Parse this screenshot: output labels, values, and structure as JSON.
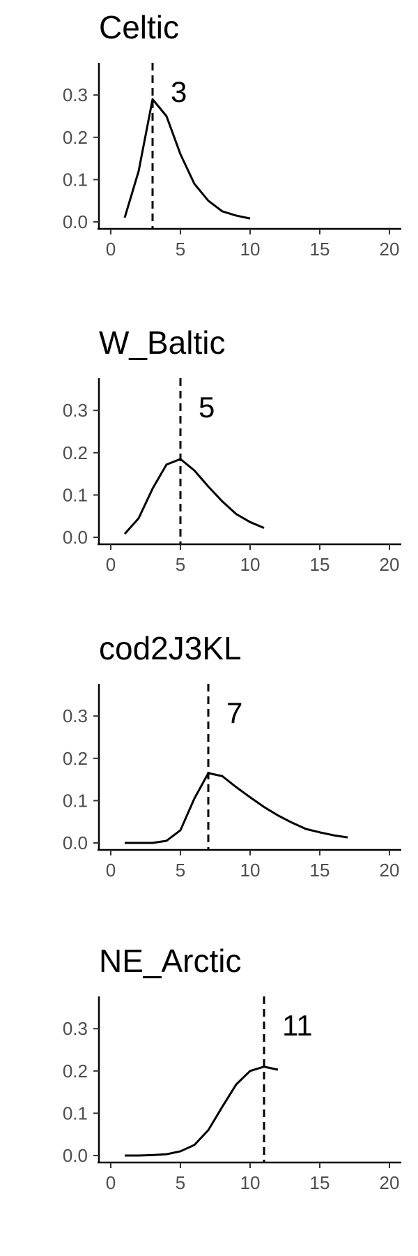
{
  "chart_data": [
    {
      "type": "line",
      "title": "Celtic",
      "xlabel": "",
      "ylabel": "",
      "xlim": [
        0,
        20
      ],
      "ylim": [
        0,
        0.35
      ],
      "xticks": [
        0,
        5,
        10,
        15,
        20
      ],
      "yticks": [
        0.0,
        0.1,
        0.2,
        0.3
      ],
      "x": [
        1,
        2,
        3,
        4,
        5,
        6,
        7,
        8,
        9,
        10
      ],
      "y": [
        0.01,
        0.12,
        0.29,
        0.25,
        0.16,
        0.09,
        0.05,
        0.025,
        0.015,
        0.008
      ],
      "vline_x": 3,
      "annotation": "3",
      "grid": false
    },
    {
      "type": "line",
      "title": "W_Baltic",
      "xlabel": "",
      "ylabel": "",
      "xlim": [
        0,
        20
      ],
      "ylim": [
        0,
        0.35
      ],
      "xticks": [
        0,
        5,
        10,
        15,
        20
      ],
      "yticks": [
        0.0,
        0.1,
        0.2,
        0.3
      ],
      "x": [
        1,
        2,
        3,
        4,
        5,
        6,
        7,
        8,
        9,
        10,
        11
      ],
      "y": [
        0.008,
        0.045,
        0.115,
        0.172,
        0.185,
        0.158,
        0.12,
        0.085,
        0.055,
        0.036,
        0.022
      ],
      "vline_x": 5,
      "annotation": "5",
      "grid": false
    },
    {
      "type": "line",
      "title": "cod2J3KL",
      "xlabel": "",
      "ylabel": "",
      "xlim": [
        0,
        20
      ],
      "ylim": [
        0,
        0.35
      ],
      "xticks": [
        0,
        5,
        10,
        15,
        20
      ],
      "yticks": [
        0.0,
        0.1,
        0.2,
        0.3
      ],
      "x": [
        1,
        2,
        3,
        4,
        5,
        6,
        7,
        8,
        9,
        10,
        11,
        12,
        13,
        14,
        15,
        16,
        17
      ],
      "y": [
        0.0,
        0.0,
        0.0,
        0.005,
        0.03,
        0.105,
        0.165,
        0.158,
        0.132,
        0.108,
        0.085,
        0.065,
        0.048,
        0.033,
        0.025,
        0.018,
        0.013
      ],
      "vline_x": 7,
      "annotation": "7",
      "grid": false
    },
    {
      "type": "line",
      "title": "NE_Arctic",
      "xlabel": "",
      "ylabel": "",
      "xlim": [
        0,
        20
      ],
      "ylim": [
        0,
        0.35
      ],
      "xticks": [
        0,
        5,
        10,
        15,
        20
      ],
      "yticks": [
        0.0,
        0.1,
        0.2,
        0.3
      ],
      "x": [
        1,
        2,
        3,
        4,
        5,
        6,
        7,
        8,
        9,
        10,
        11,
        12
      ],
      "y": [
        0.0,
        0.0,
        0.001,
        0.003,
        0.01,
        0.025,
        0.06,
        0.115,
        0.168,
        0.2,
        0.21,
        0.203
      ],
      "vline_x": 11,
      "annotation": "11",
      "grid": false
    }
  ]
}
